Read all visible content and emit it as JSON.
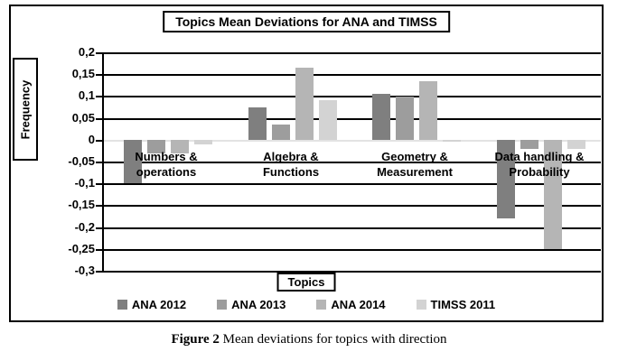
{
  "figure": {
    "title": "Topics Mean Deviations for ANA and TIMSS",
    "ylabel": "Frequency",
    "xlabel": "Topics",
    "caption_prefix": "Figure 2",
    "caption_text": " Mean deviations for topics with direction"
  },
  "chart_data": {
    "type": "bar",
    "title": "Topics Mean Deviations for ANA and TIMSS",
    "xlabel": "Topics",
    "ylabel": "Frequency",
    "ylim": [
      -0.3,
      0.2
    ],
    "ytick_step": 0.05,
    "decimal_separator": ",",
    "yticklabels": [
      "0,2",
      "0,15",
      "0,1",
      "0,05",
      "0",
      "-0,05",
      "-0,1",
      "-0,15",
      "-0,2",
      "-0,25",
      "-0,3"
    ],
    "grid": true,
    "legend_position": "bottom",
    "zero_axis_color": "#e3e3e3",
    "categories": [
      "Numbers & operations",
      "Algebra & Functions",
      "Geometry & Measurement",
      "Data handling & Probability"
    ],
    "category_lines": [
      [
        "Numbers &",
        "operations"
      ],
      [
        "Algebra &",
        "Functions"
      ],
      [
        "Geometry &",
        "Measurement"
      ],
      [
        "Data handling &",
        "Probability"
      ]
    ],
    "series": [
      {
        "name": "ANA 2012",
        "color": "#7f7f7f",
        "values": [
          -0.1,
          0.075,
          0.105,
          -0.18
        ]
      },
      {
        "name": "ANA 2013",
        "color": "#9d9d9d",
        "values": [
          -0.03,
          0.035,
          0.1,
          -0.02
        ]
      },
      {
        "name": "ANA 2014",
        "color": "#b5b5b5",
        "values": [
          -0.03,
          0.165,
          0.135,
          -0.25
        ]
      },
      {
        "name": "TIMSS 2011",
        "color": "#d3d3d3",
        "values": [
          -0.01,
          0.09,
          -0.005,
          -0.02
        ]
      }
    ]
  }
}
